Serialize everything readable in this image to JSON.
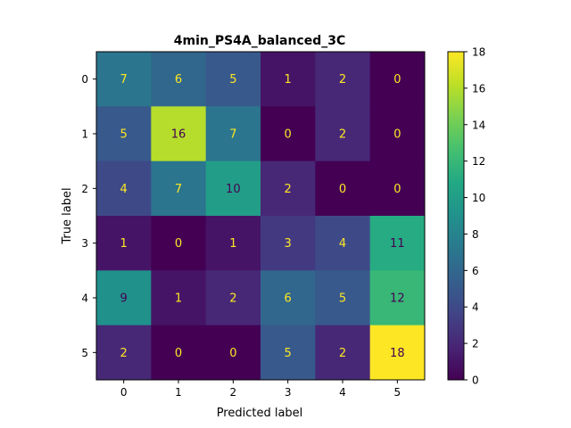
{
  "chart_data": {
    "type": "heatmap",
    "title": "4min_PS4A_balanced_3C",
    "xlabel": "Predicted label",
    "ylabel": "True label",
    "x_categories": [
      "0",
      "1",
      "2",
      "3",
      "4",
      "5"
    ],
    "y_categories": [
      "0",
      "1",
      "2",
      "3",
      "4",
      "5"
    ],
    "matrix": [
      [
        7,
        6,
        5,
        1,
        2,
        0
      ],
      [
        5,
        16,
        7,
        0,
        2,
        0
      ],
      [
        4,
        7,
        10,
        2,
        0,
        0
      ],
      [
        1,
        0,
        1,
        3,
        4,
        11
      ],
      [
        9,
        1,
        2,
        6,
        5,
        12
      ],
      [
        2,
        0,
        0,
        5,
        2,
        18
      ]
    ],
    "colorbar": {
      "min": 0,
      "max": 18,
      "ticks": [
        0,
        2,
        4,
        6,
        8,
        10,
        12,
        14,
        16,
        18
      ]
    },
    "colormap": "viridis",
    "grid": false
  }
}
